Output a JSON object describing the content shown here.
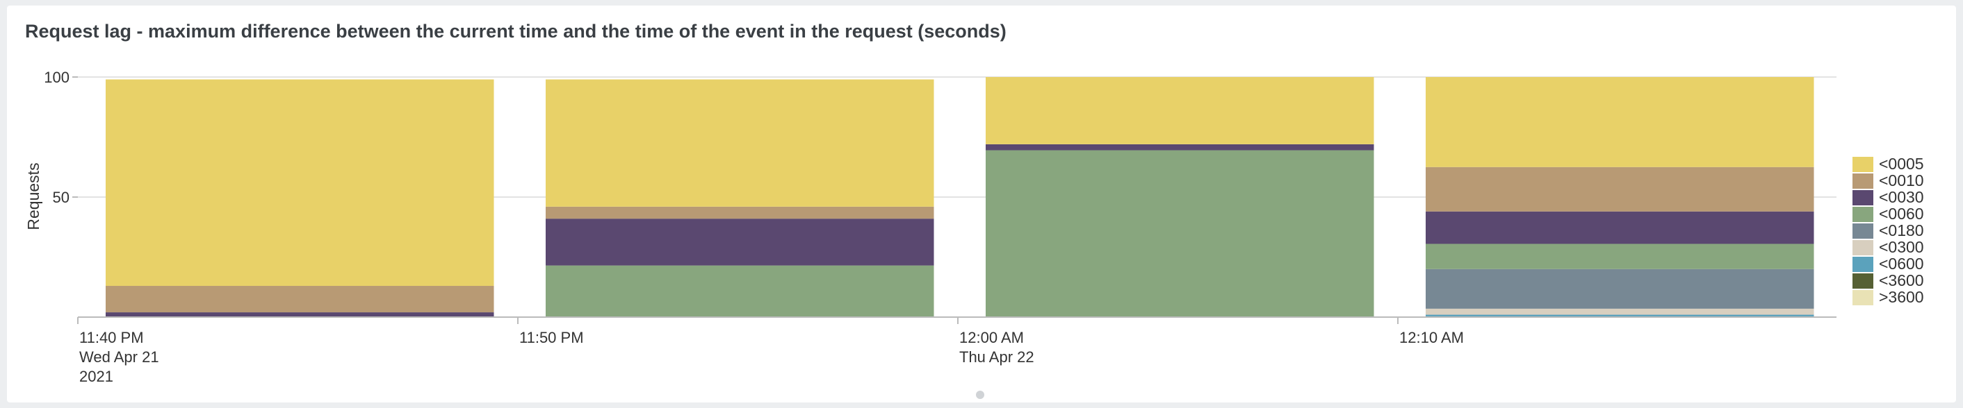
{
  "panel_title": "Request lag - maximum difference between the current time and the time of the event in the request (seconds)",
  "chart_data": {
    "type": "bar",
    "stacked": true,
    "ylabel": "Requests",
    "ylim": [
      0,
      100
    ],
    "yticks": [
      "50",
      "100"
    ],
    "ytick_values": [
      50,
      100
    ],
    "x_tick_labels": [
      [
        "11:40 PM",
        "Wed Apr 21",
        "2021"
      ],
      [
        "11:50 PM"
      ],
      [
        "12:00 AM",
        "Thu Apr 22"
      ],
      [
        "12:10 AM"
      ]
    ],
    "bins": 4,
    "grid": true,
    "legend_position": "right",
    "series": [
      {
        "name": "<0005",
        "color": "#e8d168",
        "values": [
          86,
          53,
          28,
          37.5
        ]
      },
      {
        "name": "<0010",
        "color": "#b89a74",
        "values": [
          11,
          5,
          0,
          18.5
        ]
      },
      {
        "name": "<0030",
        "color": "#5a4870",
        "values": [
          2,
          19.5,
          2.5,
          13.5
        ]
      },
      {
        "name": "<0060",
        "color": "#88a67e",
        "values": [
          0,
          21.5,
          69.5,
          10.5
        ]
      },
      {
        "name": "<0180",
        "color": "#778894",
        "values": [
          0,
          0,
          0,
          16.5
        ]
      },
      {
        "name": "<0300",
        "color": "#d8cfbf",
        "values": [
          0,
          0,
          0,
          2.5
        ]
      },
      {
        "name": "<0600",
        "color": "#5ba2bc",
        "values": [
          0,
          0,
          0,
          1
        ]
      },
      {
        "name": "<3600",
        "color": "#566034",
        "values": [
          0,
          0,
          0,
          0
        ]
      },
      {
        "name": ">3600",
        "color": "#e9e2b5",
        "values": [
          0,
          0,
          0,
          0
        ]
      }
    ]
  }
}
